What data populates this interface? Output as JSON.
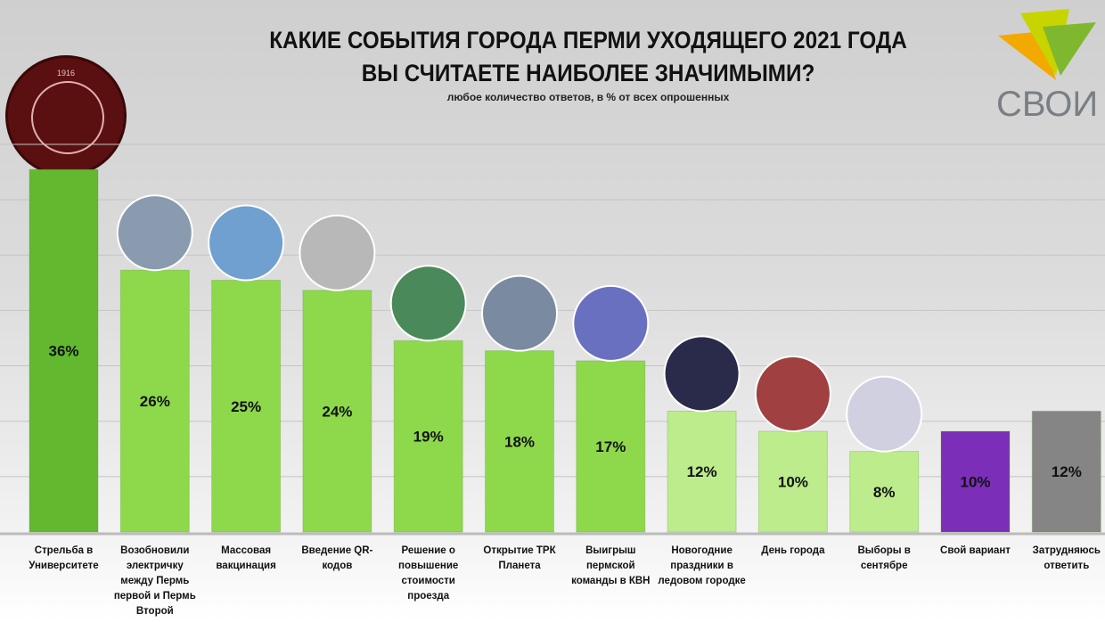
{
  "title_line1": "КАКИЕ СОБЫТИЯ ГОРОДА ПЕРМИ УХОДЯЩЕГО 2021 ГОДА",
  "title_line2": "ВЫ СЧИТАЕТЕ НАИБОЛЕЕ ЗНАЧИМЫМИ?",
  "subtitle": "любое количество ответов, в % от всех опрошенных",
  "logos": {
    "university": "ПЕРМСКИЙ УНИВЕРСИТЕТ · PERM UNIVERSITY · 1916",
    "brand": "СВОИ"
  },
  "colors": {
    "dark_green": "#62b82f",
    "green": "#8ed84c",
    "light_green": "#bdec8c",
    "purple": "#7b2fb8",
    "gray": "#858585"
  },
  "chart_data": {
    "type": "bar",
    "title": "КАКИЕ СОБЫТИЯ ГОРОДА ПЕРМИ УХОДЯЩЕГО 2021 ГОДА ВЫ СЧИТАЕТЕ НАИБОЛЕЕ ЗНАЧИМЫМИ?",
    "subtitle": "любое количество ответов, в % от всех опрошенных",
    "categories": [
      "Стрельба в Университете",
      "Возобновили электричку между Пермь первой и Пермь Второй",
      "Массовая вакцинация",
      "Введение QR-кодов",
      "Решение о повышение стоимости проезда",
      "Открытие ТРК Планета",
      "Выигрыш пермской команды в КВН",
      "Новогодние праздники в ледовом городке",
      "День города",
      "Выборы в сентябре",
      "Свой вариант",
      "Затрудняюсь ответить"
    ],
    "values": [
      36,
      26,
      25,
      24,
      19,
      18,
      17,
      12,
      10,
      8,
      10,
      12
    ],
    "labels": [
      "36%",
      "26%",
      "25%",
      "24%",
      "19%",
      "18%",
      "17%",
      "12%",
      "10%",
      "8%",
      "10%",
      "12%"
    ],
    "bar_colors": [
      "#62b82f",
      "#8ed84c",
      "#8ed84c",
      "#8ed84c",
      "#8ed84c",
      "#8ed84c",
      "#8ed84c",
      "#bdec8c",
      "#bdec8c",
      "#bdec8c",
      "#7b2fb8",
      "#858585"
    ],
    "photos": [
      false,
      true,
      true,
      true,
      true,
      true,
      true,
      true,
      true,
      true,
      false,
      false
    ],
    "ylim": [
      0,
      40
    ],
    "grid": true,
    "xlabel": "",
    "ylabel": ""
  }
}
